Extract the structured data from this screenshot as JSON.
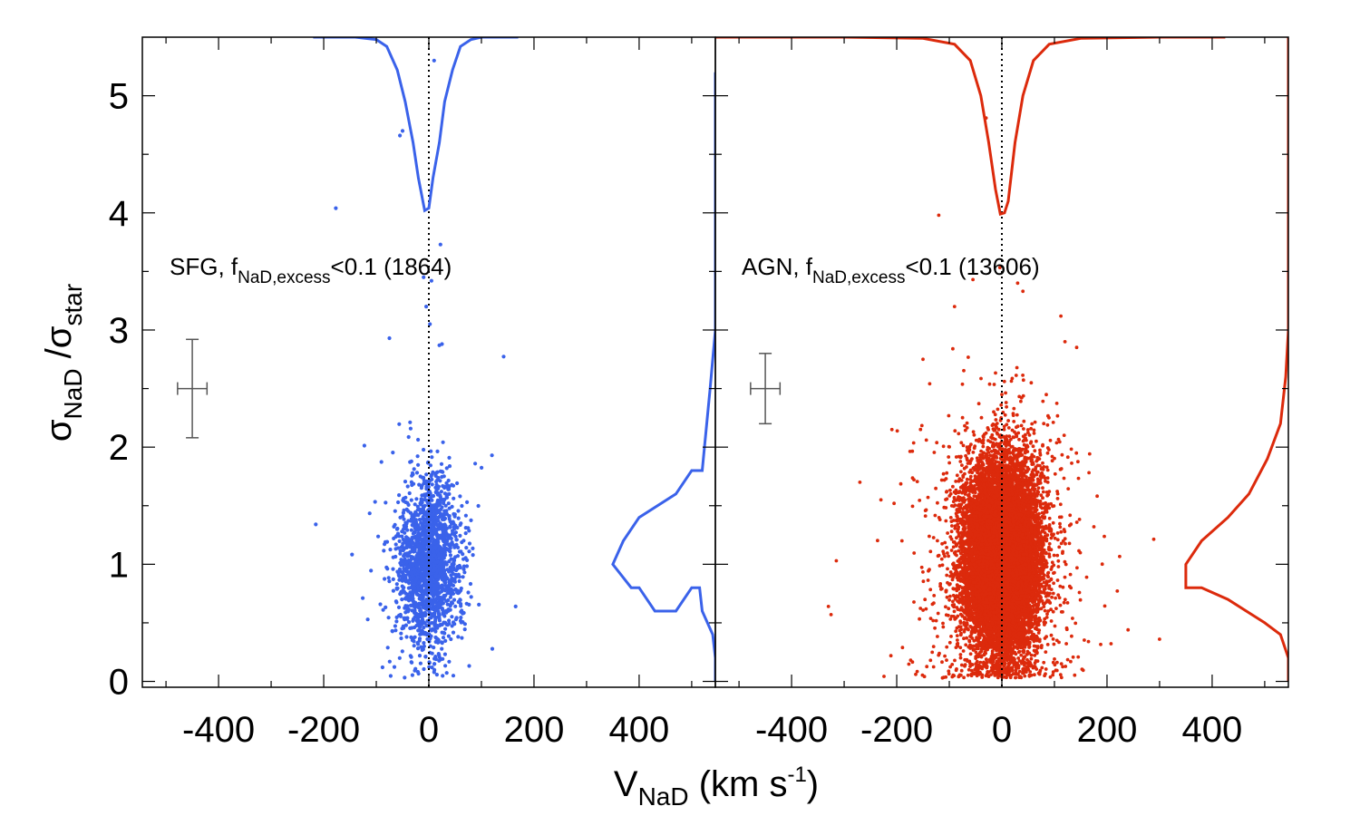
{
  "chart_data": {
    "type": "scatter",
    "y_axis": {
      "label": "σ",
      "label_sub1": "NaD",
      "label_mid": " /σ",
      "label_sub2": "star",
      "ylim": [
        -0.05,
        5.5
      ],
      "ticks": [
        0,
        1,
        2,
        3,
        4,
        5
      ],
      "tick_labels": [
        "0",
        "1",
        "2",
        "3",
        "4",
        "5"
      ]
    },
    "x_axis": {
      "label": "V",
      "label_sub": "NaD",
      "label_unit": " (km s",
      "label_sup": "-1",
      "label_close": ")",
      "xlim": [
        -545,
        545
      ],
      "ticks": [
        -400,
        -200,
        0,
        200,
        400
      ],
      "tick_labels": [
        "-400",
        "-200",
        "0",
        "200",
        "400"
      ]
    },
    "panels": [
      {
        "name": "sfg",
        "color": "#3a62ea",
        "annotation": {
          "prefix": "SFG, f",
          "sub": "NaD,excess",
          "suffix": "<0.1 (1864)"
        },
        "n_points": 1864,
        "center": {
          "x": 0,
          "y": 1.0
        },
        "spread": {
          "x": 30,
          "y": 0.35
        },
        "error_bar": {
          "x": -450,
          "y": 2.5,
          "dx": 28,
          "dy": 0.42
        },
        "outliers": [
          {
            "x": -177,
            "y": 4.04
          },
          {
            "x": -50,
            "y": 4.7
          },
          {
            "x": -55,
            "y": 4.66
          },
          {
            "x": 10,
            "y": 5.3
          },
          {
            "x": 22,
            "y": 3.73
          },
          {
            "x": -10,
            "y": 3.45
          },
          {
            "x": 5,
            "y": 3.42
          },
          {
            "x": 20,
            "y": 2.87
          },
          {
            "x": 25,
            "y": 2.88
          },
          {
            "x": -75,
            "y": 2.93
          },
          {
            "x": 120,
            "y": 1.93
          },
          {
            "x": -215,
            "y": 1.34
          },
          {
            "x": 165,
            "y": 0.64
          },
          {
            "x": -5,
            "y": 3.2
          },
          {
            "x": 2,
            "y": 3.05
          }
        ],
        "histogram_top": {
          "x": [
            -220,
            -140,
            -100,
            -80,
            -60,
            -45,
            -30,
            -20,
            -8,
            0,
            8,
            20,
            30,
            45,
            60,
            80,
            100,
            140,
            170
          ],
          "y": [
            5.5,
            5.5,
            5.48,
            5.42,
            5.22,
            4.95,
            4.6,
            4.3,
            4.02,
            4.04,
            4.3,
            4.6,
            4.95,
            5.22,
            5.42,
            5.48,
            5.5,
            5.5,
            5.5
          ]
        },
        "histogram_right": {
          "x": [
            545,
            545,
            540,
            520,
            515,
            500,
            470,
            430,
            400,
            385,
            350,
            370,
            400,
            470,
            500,
            520,
            535,
            545,
            545
          ],
          "y": [
            0.0,
            0.2,
            0.4,
            0.6,
            0.8,
            0.8,
            0.6,
            0.6,
            0.8,
            0.8,
            1.0,
            1.2,
            1.4,
            1.6,
            1.8,
            1.8,
            2.5,
            3.0,
            5.2
          ]
        }
      },
      {
        "name": "agn",
        "color": "#dc2a0c",
        "annotation": {
          "prefix": "AGN, f",
          "sub": "NaD,excess",
          "suffix": "<0.1 (13606)"
        },
        "n_points": 13606,
        "center": {
          "x": 0,
          "y": 1.05
        },
        "spread": {
          "x": 35,
          "y": 0.4
        },
        "error_bar": {
          "x": -450,
          "y": 2.5,
          "dx": 28,
          "dy": 0.3
        },
        "outliers": [
          {
            "x": -30,
            "y": 4.81
          },
          {
            "x": -120,
            "y": 3.98
          },
          {
            "x": -270,
            "y": 1.7
          },
          {
            "x": -330,
            "y": 0.64
          },
          {
            "x": -325,
            "y": 0.57
          },
          {
            "x": -315,
            "y": 1.03
          },
          {
            "x": 300,
            "y": 0.36
          },
          {
            "x": 240,
            "y": 0.44
          },
          {
            "x": 175,
            "y": 1.32
          },
          {
            "x": -190,
            "y": 1.2
          },
          {
            "x": -90,
            "y": 3.2
          },
          {
            "x": -55,
            "y": 3.43
          },
          {
            "x": 30,
            "y": 3.4
          },
          {
            "x": 40,
            "y": 3.33
          },
          {
            "x": -150,
            "y": 2.75
          },
          {
            "x": 120,
            "y": 2.9
          },
          {
            "x": -205,
            "y": 1.52
          },
          {
            "x": -230,
            "y": 1.55
          }
        ],
        "histogram_top": {
          "x": [
            -545,
            -300,
            -150,
            -90,
            -60,
            -40,
            -25,
            -12,
            -3,
            5,
            12,
            25,
            40,
            60,
            90,
            150,
            300,
            425
          ],
          "y": [
            5.5,
            5.5,
            5.49,
            5.44,
            5.3,
            5.0,
            4.6,
            4.2,
            3.99,
            4.0,
            4.1,
            4.6,
            5.0,
            5.3,
            5.44,
            5.49,
            5.5,
            5.5
          ]
        },
        "histogram_right": {
          "x": [
            545,
            545,
            530,
            500,
            465,
            430,
            380,
            350,
            350,
            380,
            430,
            470,
            505,
            530,
            540,
            545,
            545
          ],
          "y": [
            0.0,
            0.2,
            0.4,
            0.5,
            0.6,
            0.7,
            0.8,
            0.8,
            1.0,
            1.2,
            1.4,
            1.6,
            1.9,
            2.2,
            2.6,
            3.0,
            5.5
          ]
        }
      }
    ]
  }
}
